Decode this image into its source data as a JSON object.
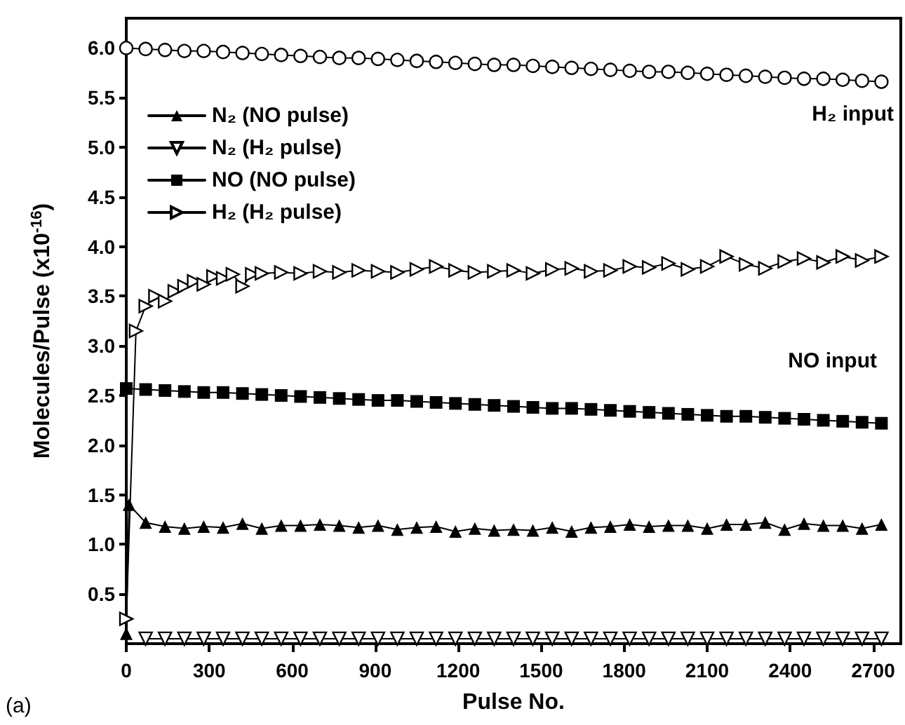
{
  "chart_data": {
    "type": "line",
    "xlabel": "Pulse No.",
    "ylabel": "Molecules/Pulse (x10$^{-16}$)",
    "xlim": [
      0,
      2800
    ],
    "ylim": [
      0,
      6.3
    ],
    "xticks": [
      0,
      300,
      600,
      900,
      1200,
      1500,
      1800,
      2100,
      2400,
      2700
    ],
    "yticks": [
      {
        "value": 0.5,
        "label": "0.5"
      },
      {
        "value": 1,
        "label": "1.0"
      },
      {
        "value": 1.5,
        "label": "1.5"
      },
      {
        "value": 2,
        "label": "2.0"
      },
      {
        "value": 2.5,
        "label": "2.5"
      },
      {
        "value": 3,
        "label": "3.0"
      },
      {
        "value": 3.5,
        "label": "3.5"
      },
      {
        "value": 4,
        "label": "4.0"
      },
      {
        "value": 4.5,
        "label": "4.5"
      },
      {
        "value": 5,
        "label": "5.0"
      },
      {
        "value": 5.5,
        "label": "5.5"
      },
      {
        "value": 6,
        "label": "6.0"
      }
    ],
    "legend": "top left",
    "grid": false,
    "line_style": "solid",
    "annotations": [
      "H₂ input",
      "NO input",
      "(a)"
    ],
    "series": [
      {
        "name": "N₂ (NO pulse)",
        "color": "#000000",
        "marker": "triangle",
        "x": [
          0,
          10,
          70,
          140,
          210,
          280,
          350,
          420,
          490,
          560,
          630,
          700,
          770,
          840,
          910,
          980,
          1050,
          1120,
          1190,
          1260,
          1330,
          1400,
          1470,
          1540,
          1610,
          1680,
          1750,
          1820,
          1890,
          1960,
          2030,
          2100,
          2170,
          2240,
          2310,
          2380,
          2450,
          2520,
          2590,
          2660,
          2730
        ],
        "values": [
          0.1,
          1.4,
          1.22,
          1.18,
          1.16,
          1.18,
          1.17,
          1.21,
          1.16,
          1.19,
          1.19,
          1.2,
          1.19,
          1.17,
          1.19,
          1.15,
          1.17,
          1.18,
          1.13,
          1.16,
          1.14,
          1.15,
          1.14,
          1.17,
          1.13,
          1.17,
          1.18,
          1.2,
          1.18,
          1.19,
          1.19,
          1.16,
          1.2,
          1.2,
          1.22,
          1.15,
          1.21,
          1.19,
          1.19,
          1.16,
          1.2
        ]
      },
      {
        "name": "N₂ (H₂ pulse)",
        "color": "#000000",
        "marker": "triangle-down",
        "x": [
          70,
          140,
          210,
          280,
          350,
          420,
          490,
          560,
          630,
          700,
          770,
          840,
          910,
          980,
          1050,
          1120,
          1190,
          1260,
          1330,
          1400,
          1470,
          1540,
          1610,
          1680,
          1750,
          1820,
          1890,
          1960,
          2030,
          2100,
          2170,
          2240,
          2310,
          2380,
          2450,
          2520,
          2590,
          2660,
          2730
        ],
        "values": [
          0.05,
          0.05,
          0.05,
          0.05,
          0.05,
          0.05,
          0.05,
          0.05,
          0.05,
          0.05,
          0.05,
          0.05,
          0.05,
          0.05,
          0.05,
          0.05,
          0.05,
          0.05,
          0.05,
          0.05,
          0.05,
          0.05,
          0.05,
          0.05,
          0.05,
          0.05,
          0.05,
          0.05,
          0.05,
          0.05,
          0.05,
          0.05,
          0.05,
          0.05,
          0.05,
          0.05,
          0.05,
          0.05,
          0.05
        ]
      },
      {
        "name": "NO (NO pulse)",
        "color": "#000000",
        "marker": "square",
        "x": [
          0,
          70,
          140,
          210,
          280,
          350,
          420,
          490,
          560,
          630,
          700,
          770,
          840,
          910,
          980,
          1050,
          1120,
          1190,
          1260,
          1330,
          1400,
          1470,
          1540,
          1610,
          1680,
          1750,
          1820,
          1890,
          1960,
          2030,
          2100,
          2170,
          2240,
          2310,
          2380,
          2450,
          2520,
          2590,
          2660,
          2730
        ],
        "values": [
          2.57,
          2.56,
          2.55,
          2.54,
          2.53,
          2.53,
          2.52,
          2.51,
          2.5,
          2.49,
          2.48,
          2.47,
          2.46,
          2.45,
          2.45,
          2.44,
          2.43,
          2.42,
          2.41,
          2.4,
          2.39,
          2.38,
          2.37,
          2.37,
          2.36,
          2.35,
          2.34,
          2.33,
          2.32,
          2.31,
          2.3,
          2.29,
          2.29,
          2.28,
          2.27,
          2.26,
          2.25,
          2.24,
          2.23,
          2.22
        ]
      },
      {
        "name": "H₂ (H₂ pulse)",
        "color": "#000000",
        "marker": "triangle-right",
        "x": [
          0,
          35,
          70,
          105,
          140,
          175,
          210,
          245,
          280,
          315,
          350,
          385,
          420,
          455,
          490,
          560,
          630,
          700,
          770,
          840,
          910,
          980,
          1050,
          1120,
          1190,
          1260,
          1330,
          1400,
          1470,
          1540,
          1610,
          1680,
          1750,
          1820,
          1890,
          1960,
          2030,
          2100,
          2170,
          2240,
          2310,
          2380,
          2450,
          2520,
          2590,
          2660,
          2730
        ],
        "values": [
          0.25,
          3.15,
          3.4,
          3.5,
          3.45,
          3.55,
          3.6,
          3.65,
          3.62,
          3.7,
          3.68,
          3.72,
          3.6,
          3.72,
          3.73,
          3.74,
          3.73,
          3.75,
          3.74,
          3.76,
          3.75,
          3.74,
          3.77,
          3.8,
          3.76,
          3.74,
          3.75,
          3.76,
          3.73,
          3.77,
          3.78,
          3.75,
          3.76,
          3.8,
          3.79,
          3.83,
          3.77,
          3.8,
          3.9,
          3.82,
          3.78,
          3.85,
          3.88,
          3.84,
          3.9,
          3.86,
          3.9
        ]
      },
      {
        "color": "#000000",
        "marker": "circle",
        "x": [
          0,
          70,
          140,
          210,
          280,
          350,
          420,
          490,
          560,
          630,
          700,
          770,
          840,
          910,
          980,
          1050,
          1120,
          1190,
          1260,
          1330,
          1400,
          1470,
          1540,
          1610,
          1680,
          1750,
          1820,
          1890,
          1960,
          2030,
          2100,
          2170,
          2240,
          2310,
          2380,
          2450,
          2520,
          2590,
          2660,
          2730
        ],
        "values": [
          6.0,
          5.99,
          5.98,
          5.97,
          5.97,
          5.96,
          5.95,
          5.94,
          5.93,
          5.92,
          5.91,
          5.9,
          5.9,
          5.89,
          5.88,
          5.87,
          5.86,
          5.85,
          5.84,
          5.83,
          5.83,
          5.82,
          5.81,
          5.8,
          5.79,
          5.78,
          5.77,
          5.76,
          5.76,
          5.75,
          5.74,
          5.73,
          5.72,
          5.71,
          5.7,
          5.69,
          5.69,
          5.68,
          5.67,
          5.66
        ]
      }
    ]
  }
}
